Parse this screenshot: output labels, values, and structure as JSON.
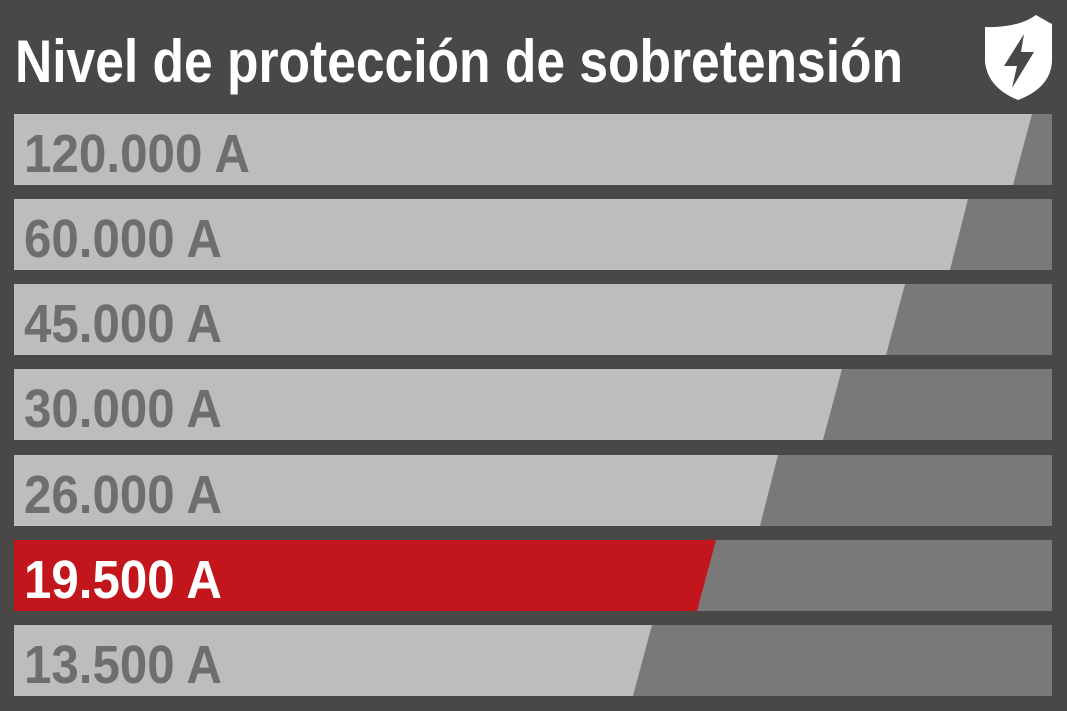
{
  "title": "Nivel de protección de sobretensión",
  "levels": [
    "120.000 A",
    "60.000 A",
    "45.000 A",
    "30.000 A",
    "26.000 A",
    "19.500 A",
    "13.500 A"
  ]
}
